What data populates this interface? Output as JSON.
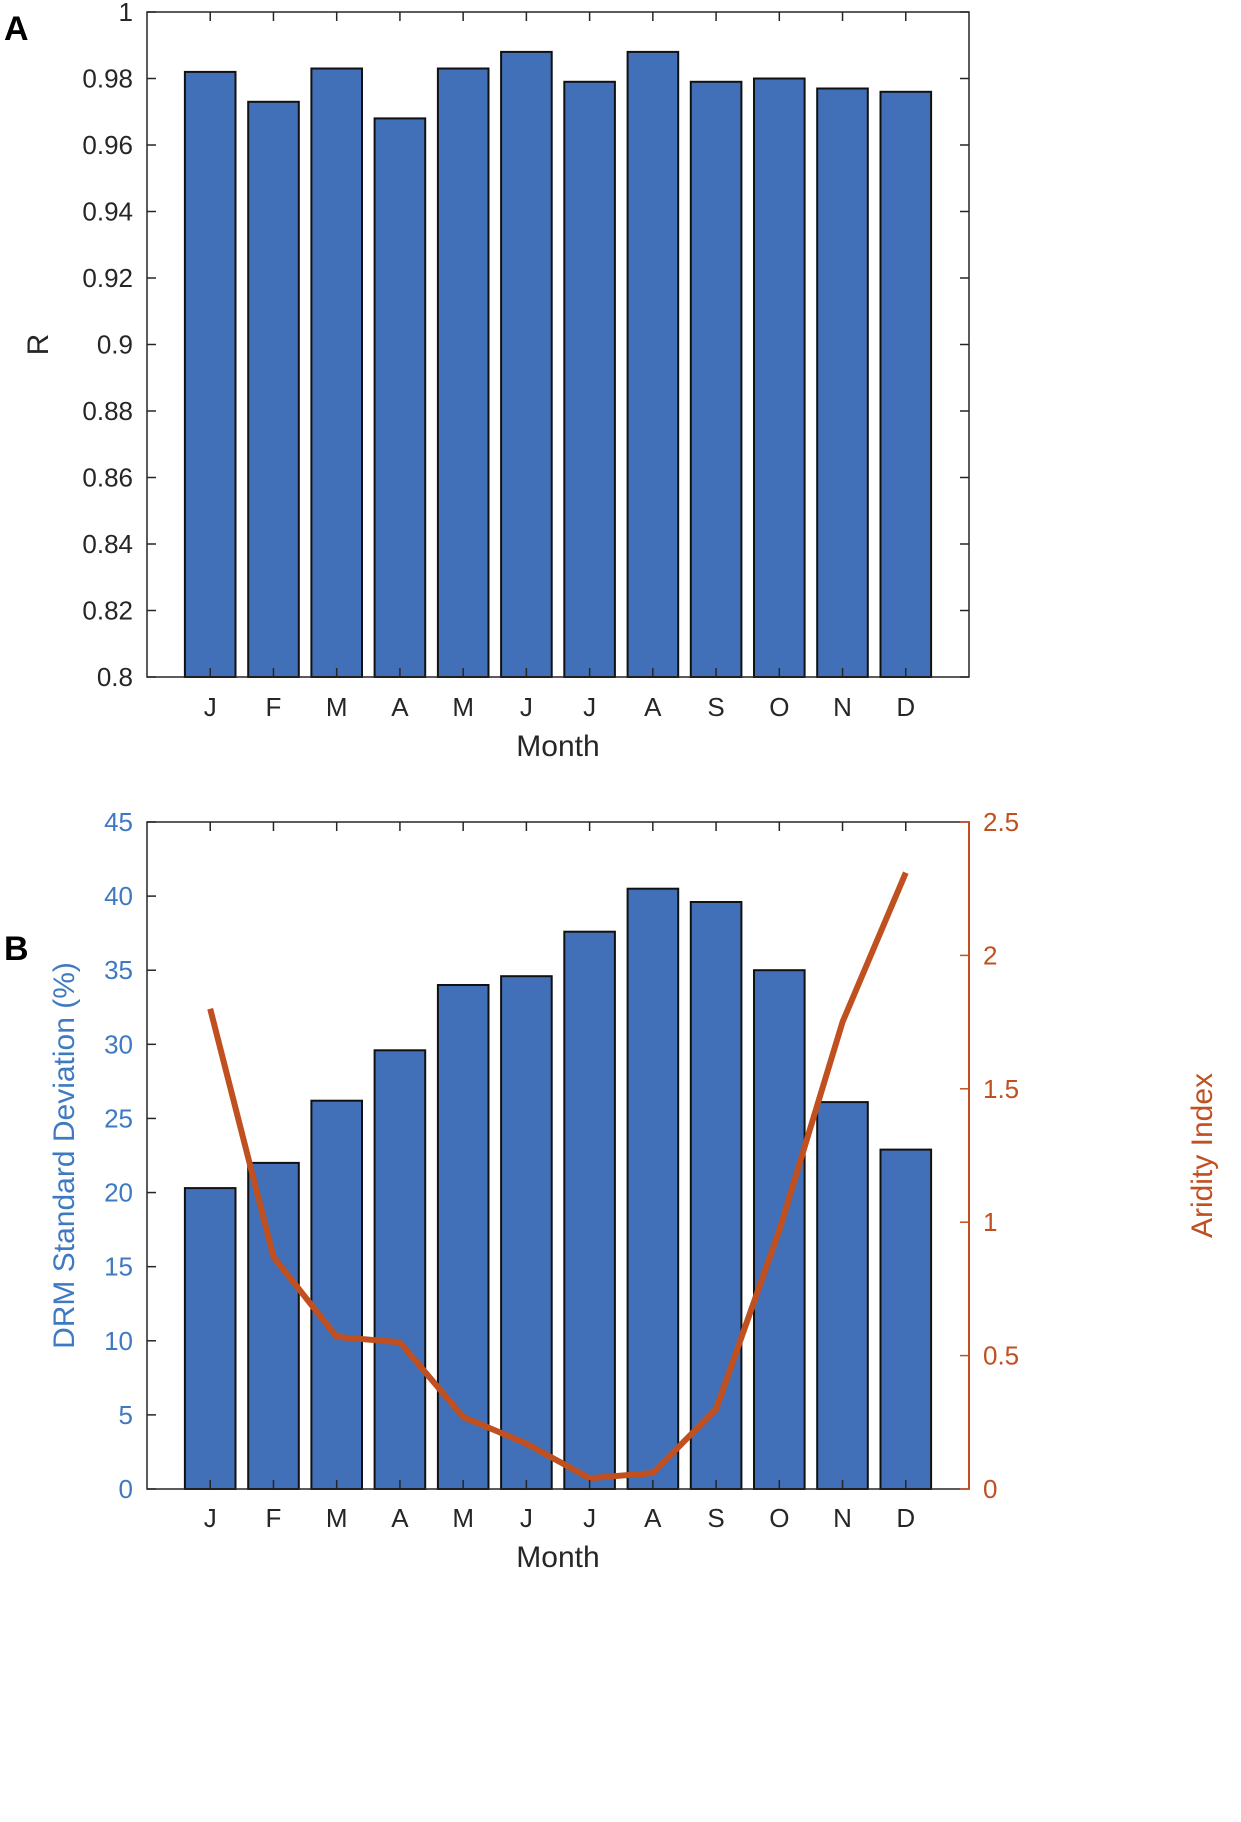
{
  "panels": {
    "a": {
      "letter": "A"
    },
    "b": {
      "letter": "B"
    }
  },
  "colors": {
    "bar_fill": "#4170B8",
    "bar_edge": "#111111",
    "line": "#C0501F",
    "left_axis_b": "#3F79C2",
    "right_axis_b": "#C0501F",
    "axis": "#262626"
  },
  "chart_data": [
    {
      "id": "panel-a",
      "type": "bar",
      "title": "",
      "xlabel": "Month",
      "ylabel": "R",
      "categories": [
        "J",
        "F",
        "M",
        "A",
        "M",
        "J",
        "J",
        "A",
        "S",
        "O",
        "N",
        "D"
      ],
      "values": [
        0.982,
        0.973,
        0.983,
        0.968,
        0.983,
        0.988,
        0.979,
        0.988,
        0.979,
        0.98,
        0.977,
        0.976
      ],
      "ylim": [
        0.8,
        1.0
      ],
      "yticks": [
        0.8,
        0.82,
        0.84,
        0.86,
        0.88,
        0.9,
        0.92,
        0.94,
        0.96,
        0.98,
        1
      ],
      "ytick_labels": [
        "0.8",
        "0.82",
        "0.84",
        "0.86",
        "0.88",
        "0.9",
        "0.92",
        "0.94",
        "0.96",
        "0.98",
        "1"
      ],
      "grid": false
    },
    {
      "id": "panel-b",
      "type": "bar",
      "title": "",
      "xlabel": "Month",
      "ylabel": "DRM Standard Deviation (%)",
      "ylabel_right": "Aridity Index",
      "categories": [
        "J",
        "F",
        "M",
        "A",
        "M",
        "J",
        "J",
        "A",
        "S",
        "O",
        "N",
        "D"
      ],
      "series": [
        {
          "name": "DRM Standard Deviation (%)",
          "type": "bar",
          "axis": "left",
          "values": [
            20.3,
            22.0,
            26.2,
            29.6,
            34.0,
            34.6,
            37.6,
            40.5,
            39.6,
            35.0,
            26.1,
            22.9
          ]
        },
        {
          "name": "Aridity Index",
          "type": "line",
          "axis": "right",
          "values": [
            1.8,
            0.87,
            0.57,
            0.55,
            0.27,
            0.17,
            0.04,
            0.06,
            0.3,
            0.97,
            1.75,
            2.31
          ]
        }
      ],
      "ylim": [
        0,
        45
      ],
      "ylim_right": [
        0,
        2.5
      ],
      "yticks": [
        0,
        5,
        10,
        15,
        20,
        25,
        30,
        35,
        40,
        45
      ],
      "ytick_labels": [
        "0",
        "5",
        "10",
        "15",
        "20",
        "25",
        "30",
        "35",
        "40",
        "45"
      ],
      "yticks_right": [
        0,
        0.5,
        1,
        1.5,
        2,
        2.5
      ],
      "ytick_labels_right": [
        "0",
        "0.5",
        "1",
        "1.5",
        "2",
        "2.5"
      ],
      "grid": false
    }
  ]
}
